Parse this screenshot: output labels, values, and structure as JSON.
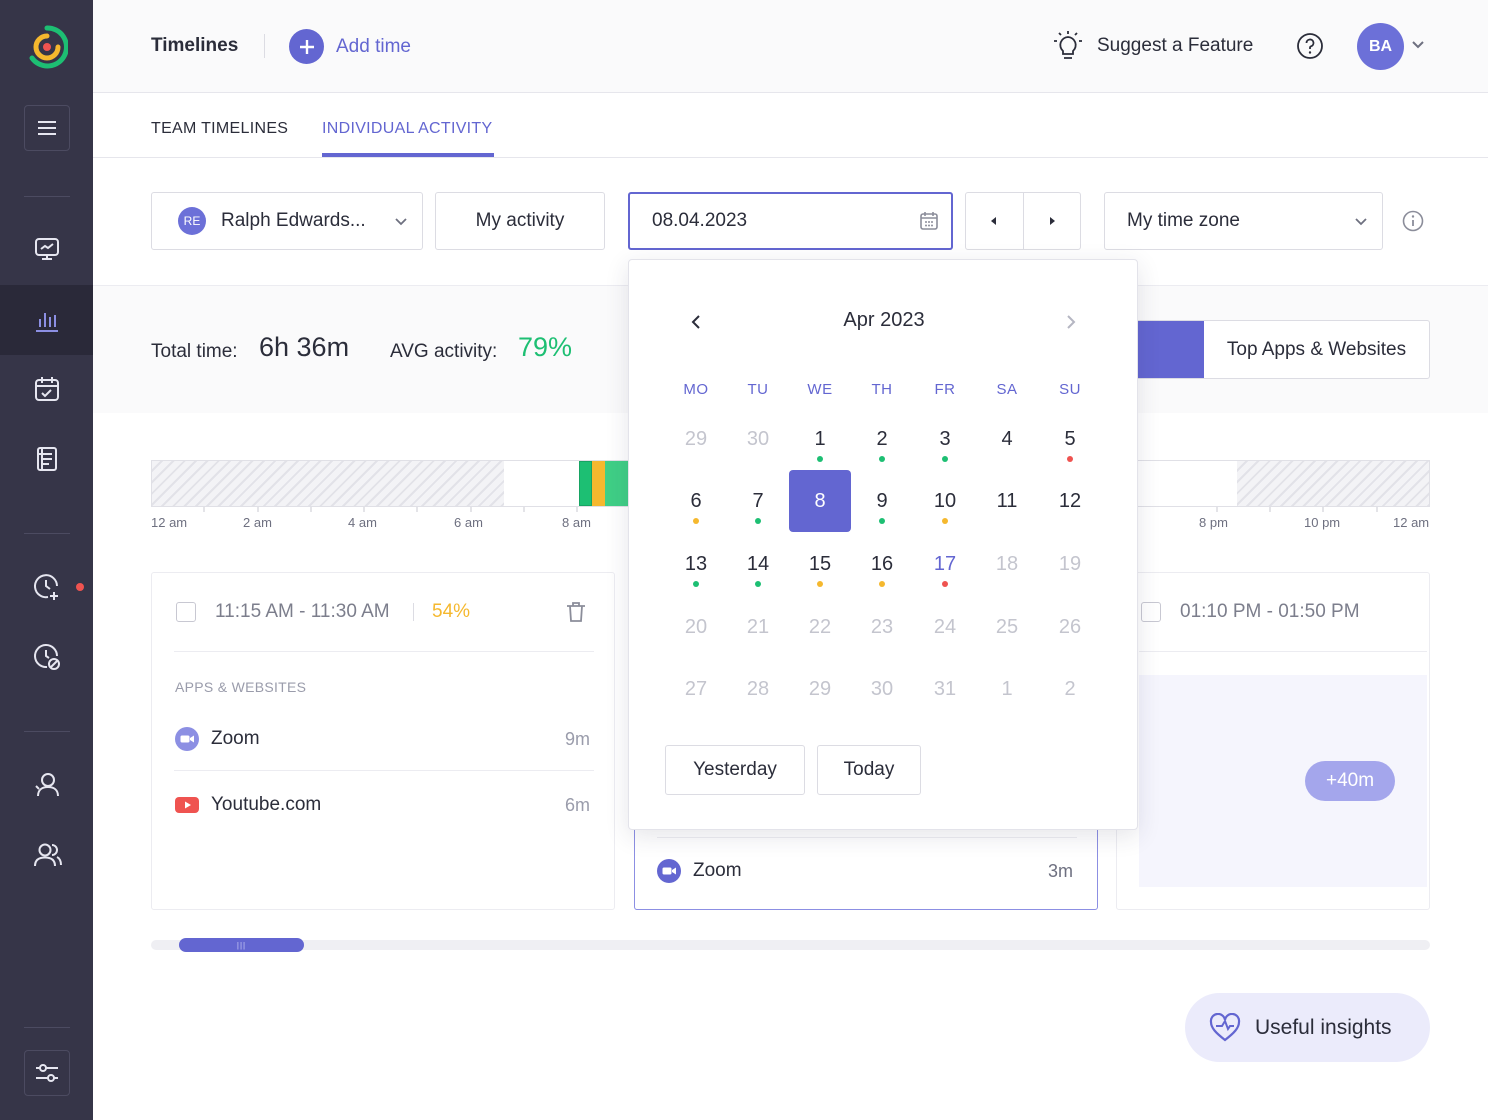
{
  "header": {
    "title": "Timelines",
    "add_time": "Add time",
    "suggest": "Suggest a Feature",
    "avatar_initials": "BA"
  },
  "tabs": [
    {
      "label": "TEAM TIMELINES"
    },
    {
      "label": "INDIVIDUAL ACTIVITY"
    }
  ],
  "filters": {
    "user_initials": "RE",
    "user_name": "Ralph Edwards...",
    "activity": "My activity",
    "date": "08.04.2023",
    "timezone": "My time zone"
  },
  "stats": {
    "total_label": "Total time:",
    "total_value": "6h 36m",
    "avg_label": "AVG activity:",
    "avg_value": "79%",
    "view_label": "Top Apps & Websites"
  },
  "timeline": {
    "labels": [
      "12 am",
      "2 am",
      "4 am",
      "6 am",
      "8 am",
      "8 pm",
      "10 pm",
      "12 am"
    ]
  },
  "calendar": {
    "month": "Apr 2023",
    "weekdays": [
      "MO",
      "TU",
      "WE",
      "TH",
      "FR",
      "SA",
      "SU"
    ],
    "yesterday": "Yesterday",
    "today": "Today",
    "weeks": [
      [
        {
          "d": "29",
          "m": true
        },
        {
          "d": "30",
          "m": true
        },
        {
          "d": "1",
          "dot": "green"
        },
        {
          "d": "2",
          "dot": "green"
        },
        {
          "d": "3",
          "dot": "green"
        },
        {
          "d": "4"
        },
        {
          "d": "5",
          "dot": "red"
        }
      ],
      [
        {
          "d": "6",
          "dot": "orange"
        },
        {
          "d": "7",
          "dot": "green"
        },
        {
          "d": "8",
          "sel": true
        },
        {
          "d": "9",
          "dot": "green"
        },
        {
          "d": "10",
          "dot": "orange"
        },
        {
          "d": "11"
        },
        {
          "d": "12"
        }
      ],
      [
        {
          "d": "13",
          "dot": "green"
        },
        {
          "d": "14",
          "dot": "green"
        },
        {
          "d": "15",
          "dot": "orange"
        },
        {
          "d": "16",
          "dot": "orange"
        },
        {
          "d": "17",
          "today": true,
          "dot": "red"
        },
        {
          "d": "18",
          "m": true
        },
        {
          "d": "19",
          "m": true
        }
      ],
      [
        {
          "d": "20",
          "m": true
        },
        {
          "d": "21",
          "m": true
        },
        {
          "d": "22",
          "m": true
        },
        {
          "d": "23",
          "m": true
        },
        {
          "d": "24",
          "m": true
        },
        {
          "d": "25",
          "m": true
        },
        {
          "d": "26",
          "m": true
        }
      ],
      [
        {
          "d": "27",
          "m": true
        },
        {
          "d": "28",
          "m": true
        },
        {
          "d": "29",
          "m": true
        },
        {
          "d": "30",
          "m": true
        },
        {
          "d": "31",
          "m": true
        },
        {
          "d": "1",
          "m": true
        },
        {
          "d": "2",
          "m": true
        }
      ]
    ]
  },
  "cards": {
    "left": {
      "time": "11:15 AM - 11:30 AM",
      "pct": "54%",
      "section": "APPS & WEBSITES",
      "apps": [
        {
          "name": "Zoom",
          "dur": "9m"
        },
        {
          "name": "Youtube.com",
          "dur": "6m"
        }
      ]
    },
    "middle": {
      "apps": [
        {
          "name": "Zoom",
          "dur": "3m"
        }
      ]
    },
    "right": {
      "time": "01:10 PM - 01:50 PM",
      "more": "+40m"
    }
  },
  "insights": "Useful insights",
  "colors": {
    "accent": "#6366d1",
    "sidebar": "#363548",
    "green": "#1dbf73",
    "orange": "#f5b82e",
    "red": "#ef5350"
  }
}
